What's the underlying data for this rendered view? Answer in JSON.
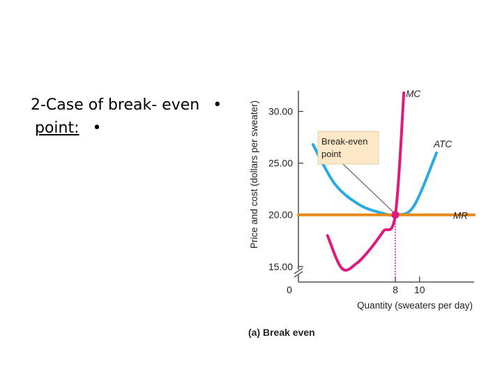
{
  "slide": {
    "line1": "2-Case of break- even",
    "line2_underlined": "point:",
    "bullet": "•"
  },
  "chart_data": {
    "type": "line",
    "ylabel": "Price and cost (dollars per sweater)",
    "xlabel": "Quantity (sweaters per day)",
    "caption": "(a) Break even",
    "annotation": "Break-even point",
    "annotation_lines": [
      "Break-even",
      "point"
    ],
    "origin_label": "0",
    "ylim": [
      13.5,
      32
    ],
    "xlim": [
      0,
      14.5
    ],
    "y_ticks": [
      {
        "value": 15,
        "label": "15.00"
      },
      {
        "value": 20,
        "label": "20.00"
      },
      {
        "value": 25,
        "label": "25.00"
      },
      {
        "value": 30,
        "label": "30.00"
      }
    ],
    "x_ticks": [
      {
        "value": 8,
        "label": "8"
      },
      {
        "value": 10,
        "label": "10"
      }
    ],
    "series": [
      {
        "name": "MC",
        "color": "#e0197d",
        "x": [
          2.4,
          3.6,
          4.8,
          6.0,
          7.0,
          8.0,
          8.7
        ],
        "y": [
          18.0,
          14.8,
          15.3,
          16.8,
          18.4,
          20.0,
          31.8
        ]
      },
      {
        "name": "ATC",
        "color": "#2aabe2",
        "x": [
          1.2,
          3.0,
          5.0,
          6.8,
          8.0,
          9.5,
          11.4
        ],
        "y": [
          26.8,
          23.0,
          21.0,
          20.2,
          20.0,
          20.8,
          26.0
        ]
      },
      {
        "name": "MR",
        "color": "#e88a1a",
        "x": [
          0,
          14.5
        ],
        "y": [
          20,
          20
        ]
      }
    ],
    "break_even": {
      "x": 8,
      "y": 20
    }
  }
}
